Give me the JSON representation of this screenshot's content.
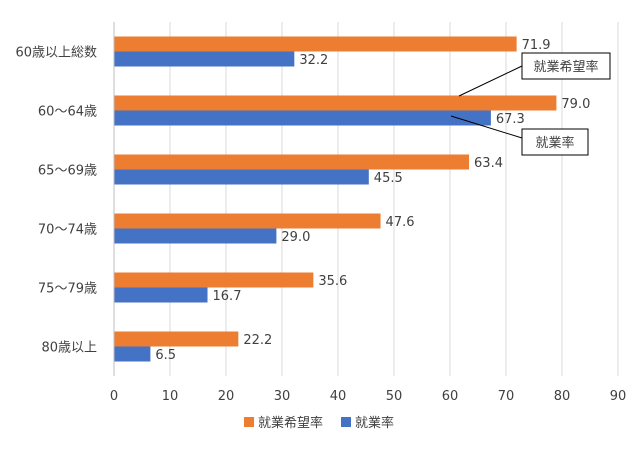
{
  "chart_data": {
    "type": "bar",
    "orientation": "horizontal",
    "categories": [
      "60歳以上総数",
      "60～64歳",
      "65～69歳",
      "70～74歳",
      "75～79歳",
      "80歳以上"
    ],
    "series": [
      {
        "name": "就業希望率",
        "color": "#ED7D31",
        "values": [
          71.9,
          79.0,
          63.4,
          47.6,
          35.6,
          22.2
        ]
      },
      {
        "name": "就業率",
        "color": "#4472C4",
        "values": [
          32.2,
          67.3,
          45.5,
          29.0,
          16.7,
          6.5
        ]
      }
    ],
    "xlim": [
      0,
      90
    ],
    "xticks": [
      0,
      10,
      20,
      30,
      40,
      50,
      60,
      70,
      80,
      90
    ],
    "grid": true,
    "legend": "bottom",
    "annotations": [
      {
        "text": "就業希望率",
        "category_index": 1,
        "series_index": 0
      },
      {
        "text": "就業率",
        "category_index": 1,
        "series_index": 1
      }
    ]
  }
}
